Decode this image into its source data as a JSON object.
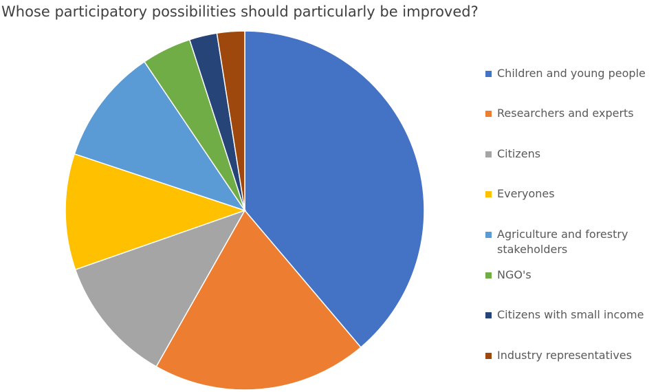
{
  "chart_data": {
    "type": "pie",
    "title": "Whose participatory possibilities should particularly be improved?",
    "legend_position": "right",
    "start_angle": "12 o'clock, clockwise",
    "slices": [
      {
        "label": "Children and young people",
        "value": 39.0,
        "color": "#4472C4"
      },
      {
        "label": "Researchers and experts",
        "value": 19.5,
        "color": "#ED7D31"
      },
      {
        "label": "Citizens",
        "value": 11.5,
        "color": "#A5A5A5"
      },
      {
        "label": "Everyones",
        "value": 10.5,
        "color": "#FFC000"
      },
      {
        "label": "Agriculture and forestry stakeholders",
        "value": 10.5,
        "color": "#5B9BD5"
      },
      {
        "label": "NGO's",
        "value": 4.5,
        "color": "#70AD47"
      },
      {
        "label": "Citizens with small income",
        "value": 2.5,
        "color": "#264478"
      },
      {
        "label": "Industry representatives",
        "value": 2.5,
        "color": "#9E480E"
      }
    ]
  }
}
